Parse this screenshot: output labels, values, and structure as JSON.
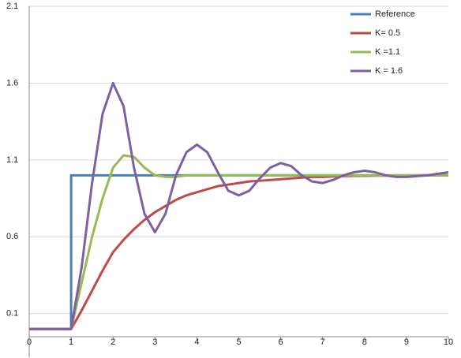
{
  "chart_data": {
    "type": "line",
    "x": [
      0,
      1,
      1,
      1.25,
      1.5,
      1.75,
      2,
      2.25,
      2.5,
      2.75,
      3,
      3.25,
      3.5,
      3.75,
      4,
      4.25,
      4.5,
      4.75,
      5,
      5.25,
      5.5,
      5.75,
      6,
      6.25,
      6.5,
      6.75,
      7,
      7.25,
      7.5,
      7.75,
      8,
      8.25,
      8.5,
      8.75,
      9,
      9.25,
      9.5,
      9.75,
      10
    ],
    "series": [
      {
        "name": "Reference",
        "color": "#4a7ebb",
        "values": [
          0,
          0,
          1,
          1,
          1,
          1,
          1,
          1,
          1,
          1,
          1,
          1,
          1,
          1,
          1,
          1,
          1,
          1,
          1,
          1,
          1,
          1,
          1,
          1,
          1,
          1,
          1,
          1,
          1,
          1,
          1,
          1,
          1,
          1,
          1,
          1,
          1,
          1,
          1
        ]
      },
      {
        "name": "K= 0.5",
        "color": "#be4b48",
        "values": [
          0,
          0,
          0,
          0.12,
          0.25,
          0.38,
          0.5,
          0.58,
          0.65,
          0.71,
          0.76,
          0.8,
          0.84,
          0.87,
          0.89,
          0.91,
          0.93,
          0.94,
          0.95,
          0.96,
          0.965,
          0.97,
          0.975,
          0.98,
          0.985,
          0.99,
          0.99,
          0.993,
          0.995,
          0.996,
          0.997,
          0.998,
          0.998,
          0.999,
          0.999,
          1,
          1,
          1,
          1
        ]
      },
      {
        "name": "K =1.1",
        "color": "#98b954",
        "values": [
          0,
          0,
          0,
          0.3,
          0.6,
          0.85,
          1.05,
          1.13,
          1.12,
          1.05,
          1.0,
          0.99,
          0.99,
          1.0,
          1.0,
          1,
          1,
          1,
          1,
          1,
          1,
          1,
          1,
          1,
          1,
          1,
          1,
          1,
          1,
          1,
          1,
          1,
          1,
          1,
          1,
          1,
          1,
          1,
          1
        ]
      },
      {
        "name": "K = 1.6",
        "color": "#7d60a0",
        "values": [
          0,
          0,
          0,
          0.4,
          0.95,
          1.4,
          1.6,
          1.45,
          1.05,
          0.75,
          0.63,
          0.75,
          1.0,
          1.15,
          1.2,
          1.15,
          1.02,
          0.9,
          0.87,
          0.9,
          0.98,
          1.05,
          1.08,
          1.06,
          1.0,
          0.96,
          0.95,
          0.97,
          1.0,
          1.02,
          1.03,
          1.02,
          1.0,
          0.99,
          0.99,
          0.995,
          1.0,
          1.01,
          1.02
        ]
      }
    ],
    "xlim": [
      0,
      10
    ],
    "xticks": [
      0,
      1,
      2,
      3,
      4,
      5,
      6,
      7,
      8,
      9,
      10
    ],
    "ylim": [
      -0.05,
      2.1
    ],
    "yticks": [
      0.1,
      0.6,
      1.1,
      1.6,
      2.1
    ],
    "grid": true,
    "legend": "top-right"
  }
}
